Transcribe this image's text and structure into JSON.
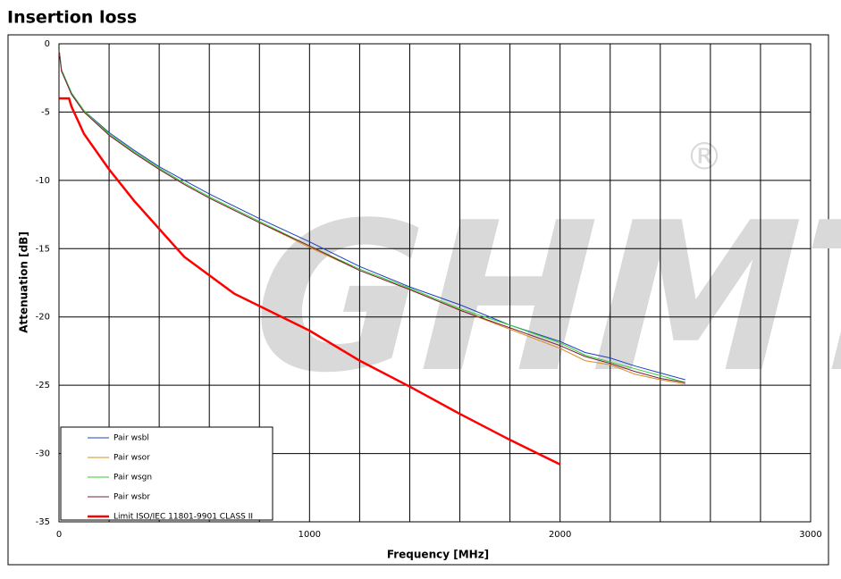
{
  "chart_data": {
    "type": "line",
    "title": "Insertion loss",
    "x_label": "Frequency [MHz]",
    "y_label": "Attenuation [dB]",
    "watermark": "GHMT",
    "watermark_mark": "®",
    "xlim": [
      0,
      3000
    ],
    "ylim": [
      -35,
      0
    ],
    "xticks": [
      0,
      1000,
      2000,
      3000
    ],
    "x_grid_ticks": [
      200,
      400,
      600,
      800,
      1200,
      1400,
      1600,
      1800,
      2200,
      2400,
      2600,
      2800
    ],
    "yticks": [
      0,
      -5,
      -10,
      -15,
      -20,
      -25,
      -30,
      -35
    ],
    "grid": true,
    "legend": "lower-left",
    "series": [
      {
        "name": "Pair wsbl",
        "color": "#1f3fbf",
        "width": 1,
        "x": [
          1,
          10,
          50,
          100,
          200,
          300,
          400,
          500,
          600,
          800,
          1000,
          1200,
          1400,
          1600,
          1800,
          2000,
          2100,
          2200,
          2300,
          2400,
          2500
        ],
        "values": [
          -0.5,
          -1.9,
          -3.6,
          -4.9,
          -6.5,
          -7.8,
          -9.0,
          -10.0,
          -11.0,
          -12.8,
          -14.5,
          -16.3,
          -17.8,
          -19.1,
          -20.6,
          -21.8,
          -22.6,
          -23.0,
          -23.6,
          -24.1,
          -24.6
        ]
      },
      {
        "name": "Pair wsor",
        "color": "#d98c1f",
        "width": 1,
        "x": [
          1,
          10,
          50,
          100,
          200,
          300,
          400,
          500,
          600,
          800,
          1000,
          1200,
          1400,
          1600,
          1800,
          2000,
          2100,
          2200,
          2300,
          2400,
          2500
        ],
        "values": [
          -0.6,
          -2.0,
          -3.7,
          -5.0,
          -6.7,
          -8.0,
          -9.2,
          -10.3,
          -11.3,
          -13.1,
          -14.9,
          -16.6,
          -18.0,
          -19.5,
          -20.9,
          -22.3,
          -23.2,
          -23.5,
          -24.2,
          -24.6,
          -24.9
        ]
      },
      {
        "name": "Pair wsgn",
        "color": "#33cc33",
        "width": 1,
        "x": [
          1,
          10,
          50,
          100,
          200,
          300,
          400,
          500,
          600,
          800,
          1000,
          1200,
          1400,
          1600,
          1800,
          2000,
          2100,
          2200,
          2300,
          2400,
          2500
        ],
        "values": [
          -0.5,
          -1.9,
          -3.6,
          -4.9,
          -6.6,
          -7.9,
          -9.1,
          -10.2,
          -11.2,
          -13.0,
          -14.8,
          -16.5,
          -17.9,
          -19.4,
          -20.6,
          -21.9,
          -22.8,
          -23.3,
          -23.8,
          -24.3,
          -24.8
        ]
      },
      {
        "name": "Pair wsbr",
        "color": "#7a1f3f",
        "width": 1,
        "x": [
          1,
          10,
          50,
          100,
          200,
          300,
          400,
          500,
          600,
          800,
          1000,
          1200,
          1400,
          1600,
          1800,
          2000,
          2100,
          2200,
          2300,
          2400,
          2500
        ],
        "values": [
          -0.6,
          -2.0,
          -3.7,
          -5.0,
          -6.7,
          -8.0,
          -9.2,
          -10.3,
          -11.3,
          -13.1,
          -14.8,
          -16.6,
          -18.0,
          -19.5,
          -20.8,
          -22.1,
          -22.9,
          -23.4,
          -24.0,
          -24.5,
          -24.8
        ]
      },
      {
        "name": "Limit ISO/IEC 11801-9901  CLASS II",
        "color": "#ff0000",
        "width": 2.5,
        "x": [
          1,
          40,
          50,
          100,
          200,
          300,
          500,
          700,
          1000,
          1200,
          1400,
          1600,
          1800,
          2000
        ],
        "values": [
          -4,
          -4,
          -4.6,
          -6.6,
          -9.2,
          -11.5,
          -15.6,
          -18.3,
          -21.0,
          -23.2,
          -25.1,
          -27.1,
          -29.0,
          -30.8
        ]
      }
    ]
  }
}
